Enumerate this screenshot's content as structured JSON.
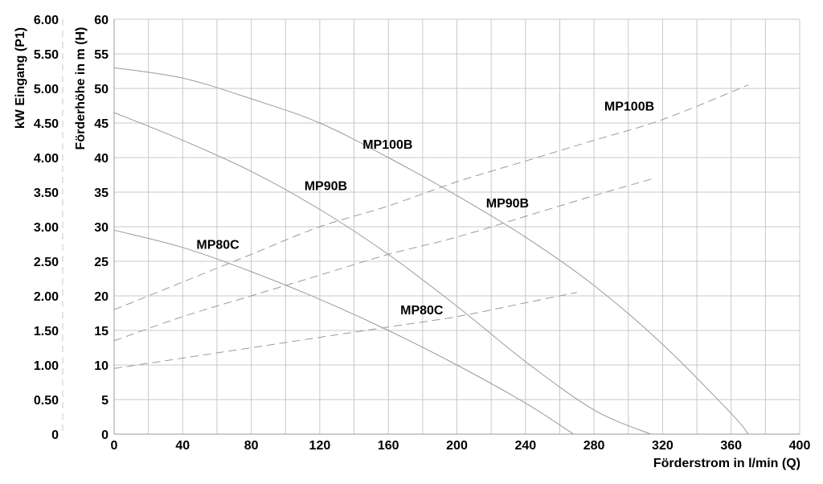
{
  "chart_data": {
    "type": "line",
    "xlabel": "Förderstrom in l/min (Q)",
    "ylabel_head": "Förderhöhe in m (H)",
    "ylabel_power": "kW Eingang (P1)",
    "x_ticks": [
      "0",
      "40",
      "80",
      "120",
      "160",
      "200",
      "240",
      "280",
      "320",
      "360",
      "400"
    ],
    "y_head_ticks": [
      "0",
      "5",
      "10",
      "15",
      "20",
      "25",
      "30",
      "35",
      "40",
      "45",
      "50",
      "55",
      "60"
    ],
    "y_power_ticks": [
      "0",
      "0.50",
      "1.00",
      "1.50",
      "2.00",
      "2.50",
      "3.00",
      "3.50",
      "4.00",
      "4.50",
      "5.00",
      "5.50",
      "6.00"
    ],
    "xlim": [
      0,
      400
    ],
    "ylim_head": [
      0,
      60
    ],
    "ylim_power": [
      0,
      6
    ],
    "grid": true,
    "series": [
      {
        "name": "MP100B",
        "kind": "head",
        "x": [
          0,
          40,
          80,
          120,
          160,
          200,
          240,
          280,
          320,
          360,
          370
        ],
        "y": [
          53,
          51.5,
          48.5,
          45,
          40,
          34.5,
          28.5,
          21.5,
          13,
          3,
          0
        ]
      },
      {
        "name": "MP90B",
        "kind": "head",
        "x": [
          0,
          40,
          80,
          120,
          160,
          200,
          240,
          280,
          313
        ],
        "y": [
          46.5,
          42.5,
          38,
          32.5,
          26,
          18.5,
          10.5,
          3.5,
          0
        ]
      },
      {
        "name": "MP80C",
        "kind": "head",
        "x": [
          0,
          40,
          80,
          120,
          160,
          200,
          240,
          268
        ],
        "y": [
          29.5,
          27,
          23.5,
          19.5,
          15,
          10,
          4.5,
          0
        ]
      },
      {
        "name": "MP100B",
        "kind": "power",
        "x": [
          0,
          40,
          80,
          120,
          160,
          200,
          240,
          280,
          320,
          370
        ],
        "y": [
          1.8,
          2.2,
          2.6,
          3.0,
          3.3,
          3.65,
          3.95,
          4.25,
          4.55,
          5.05
        ]
      },
      {
        "name": "MP90B",
        "kind": "power",
        "x": [
          0,
          40,
          80,
          120,
          160,
          200,
          240,
          280,
          315
        ],
        "y": [
          1.35,
          1.7,
          2.0,
          2.3,
          2.6,
          2.85,
          3.15,
          3.45,
          3.7
        ]
      },
      {
        "name": "MP80C",
        "kind": "power",
        "x": [
          0,
          40,
          80,
          120,
          160,
          200,
          240,
          270
        ],
        "y": [
          0.95,
          1.1,
          1.25,
          1.4,
          1.55,
          1.7,
          1.9,
          2.05
        ]
      }
    ],
    "labels": [
      {
        "text": "MP100B",
        "kind": "head",
        "x": 145,
        "y": 42
      },
      {
        "text": "MP90B",
        "kind": "head",
        "x": 111,
        "y": 36
      },
      {
        "text": "MP80C",
        "kind": "head",
        "x": 48,
        "y": 27.5
      },
      {
        "text": "MP100B",
        "kind": "power",
        "x": 286,
        "y": 4.75
      },
      {
        "text": "MP90B",
        "kind": "power",
        "x": 217,
        "y": 3.35
      },
      {
        "text": "MP80C",
        "kind": "power",
        "x": 167,
        "y": 1.8
      }
    ]
  }
}
